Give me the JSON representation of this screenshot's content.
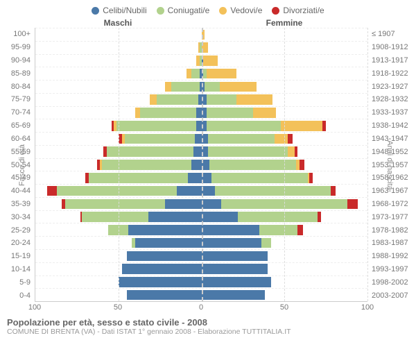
{
  "legend": [
    {
      "label": "Celibi/Nubili",
      "color": "#4b79a8"
    },
    {
      "label": "Coniugati/e",
      "color": "#b2d28d"
    },
    {
      "label": "Vedovi/e",
      "color": "#f3c15a"
    },
    {
      "label": "Divorziati/e",
      "color": "#c92a2a"
    }
  ],
  "header_male": "Maschi",
  "header_female": "Femmine",
  "y_label_left": "Fasce di età",
  "y_label_right": "Anni di nascita",
  "x_ticks": [
    100,
    50,
    0,
    50,
    100
  ],
  "x_max": 100,
  "title": "Popolazione per età, sesso e stato civile - 2008",
  "subtitle": "COMUNE DI BRENTA (VA) - Dati ISTAT 1° gennaio 2008 - Elaborazione TUTTITALIA.IT",
  "colors": {
    "celibi": "#4b79a8",
    "coniugati": "#b2d28d",
    "vedovi": "#f3c15a",
    "divorziati": "#c92a2a"
  },
  "rows": [
    {
      "age": "100+",
      "birth": "≤ 1907",
      "m": {
        "c": 0,
        "co": 0,
        "v": 0,
        "d": 0
      },
      "f": {
        "c": 0,
        "co": 0,
        "v": 2,
        "d": 0
      }
    },
    {
      "age": "95-99",
      "birth": "1908-1912",
      "m": {
        "c": 0,
        "co": 1,
        "v": 1,
        "d": 0
      },
      "f": {
        "c": 0,
        "co": 0,
        "v": 4,
        "d": 0
      }
    },
    {
      "age": "90-94",
      "birth": "1913-1917",
      "m": {
        "c": 0,
        "co": 1,
        "v": 2,
        "d": 0
      },
      "f": {
        "c": 1,
        "co": 0,
        "v": 9,
        "d": 0
      }
    },
    {
      "age": "85-89",
      "birth": "1918-1922",
      "m": {
        "c": 1,
        "co": 5,
        "v": 3,
        "d": 0
      },
      "f": {
        "c": 1,
        "co": 2,
        "v": 18,
        "d": 0
      }
    },
    {
      "age": "80-84",
      "birth": "1923-1927",
      "m": {
        "c": 1,
        "co": 17,
        "v": 4,
        "d": 0
      },
      "f": {
        "c": 2,
        "co": 9,
        "v": 22,
        "d": 0
      }
    },
    {
      "age": "75-79",
      "birth": "1928-1932",
      "m": {
        "c": 2,
        "co": 25,
        "v": 4,
        "d": 0
      },
      "f": {
        "c": 3,
        "co": 18,
        "v": 22,
        "d": 0
      }
    },
    {
      "age": "70-74",
      "birth": "1933-1937",
      "m": {
        "c": 3,
        "co": 34,
        "v": 3,
        "d": 0
      },
      "f": {
        "c": 3,
        "co": 28,
        "v": 14,
        "d": 0
      }
    },
    {
      "age": "65-69",
      "birth": "1938-1942",
      "m": {
        "c": 3,
        "co": 48,
        "v": 2,
        "d": 1
      },
      "f": {
        "c": 3,
        "co": 45,
        "v": 25,
        "d": 2
      }
    },
    {
      "age": "60-64",
      "birth": "1943-1947",
      "m": {
        "c": 4,
        "co": 42,
        "v": 2,
        "d": 2
      },
      "f": {
        "c": 4,
        "co": 40,
        "v": 8,
        "d": 3
      }
    },
    {
      "age": "55-59",
      "birth": "1948-1952",
      "m": {
        "c": 5,
        "co": 52,
        "v": 0,
        "d": 2
      },
      "f": {
        "c": 4,
        "co": 48,
        "v": 4,
        "d": 2
      }
    },
    {
      "age": "50-54",
      "birth": "1953-1957",
      "m": {
        "c": 6,
        "co": 54,
        "v": 1,
        "d": 2
      },
      "f": {
        "c": 5,
        "co": 52,
        "v": 2,
        "d": 3
      }
    },
    {
      "age": "45-49",
      "birth": "1958-1962",
      "m": {
        "c": 8,
        "co": 60,
        "v": 0,
        "d": 2
      },
      "f": {
        "c": 6,
        "co": 58,
        "v": 1,
        "d": 2
      }
    },
    {
      "age": "40-44",
      "birth": "1963-1967",
      "m": {
        "c": 15,
        "co": 72,
        "v": 0,
        "d": 6
      },
      "f": {
        "c": 8,
        "co": 70,
        "v": 0,
        "d": 3
      }
    },
    {
      "age": "35-39",
      "birth": "1968-1972",
      "m": {
        "c": 22,
        "co": 60,
        "v": 0,
        "d": 2
      },
      "f": {
        "c": 12,
        "co": 76,
        "v": 0,
        "d": 6
      }
    },
    {
      "age": "30-34",
      "birth": "1973-1977",
      "m": {
        "c": 32,
        "co": 40,
        "v": 0,
        "d": 1
      },
      "f": {
        "c": 22,
        "co": 48,
        "v": 0,
        "d": 2
      }
    },
    {
      "age": "25-29",
      "birth": "1978-1982",
      "m": {
        "c": 44,
        "co": 12,
        "v": 0,
        "d": 0
      },
      "f": {
        "c": 35,
        "co": 23,
        "v": 0,
        "d": 3
      }
    },
    {
      "age": "20-24",
      "birth": "1983-1987",
      "m": {
        "c": 40,
        "co": 2,
        "v": 0,
        "d": 0
      },
      "f": {
        "c": 36,
        "co": 6,
        "v": 0,
        "d": 0
      }
    },
    {
      "age": "15-19",
      "birth": "1988-1992",
      "m": {
        "c": 45,
        "co": 0,
        "v": 0,
        "d": 0
      },
      "f": {
        "c": 40,
        "co": 0,
        "v": 0,
        "d": 0
      }
    },
    {
      "age": "10-14",
      "birth": "1993-1997",
      "m": {
        "c": 48,
        "co": 0,
        "v": 0,
        "d": 0
      },
      "f": {
        "c": 40,
        "co": 0,
        "v": 0,
        "d": 0
      }
    },
    {
      "age": "5-9",
      "birth": "1998-2002",
      "m": {
        "c": 50,
        "co": 0,
        "v": 0,
        "d": 0
      },
      "f": {
        "c": 42,
        "co": 0,
        "v": 0,
        "d": 0
      }
    },
    {
      "age": "0-4",
      "birth": "2003-2007",
      "m": {
        "c": 45,
        "co": 0,
        "v": 0,
        "d": 0
      },
      "f": {
        "c": 38,
        "co": 0,
        "v": 0,
        "d": 0
      }
    }
  ]
}
